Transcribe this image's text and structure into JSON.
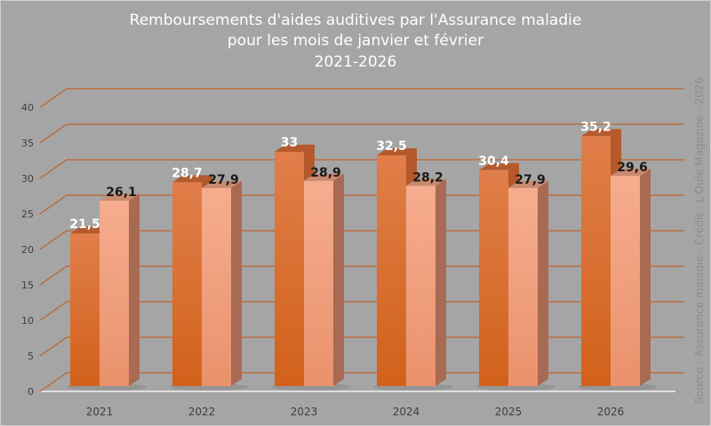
{
  "chart_data": {
    "type": "bar",
    "title": [
      "Remboursements d'aides auditives par l'Assurance maladie",
      "pour les mois de janvier et février",
      "2021-2026"
    ],
    "categories": [
      "2021",
      "2022",
      "2023",
      "2024",
      "2025",
      "2026"
    ],
    "series": [
      {
        "values": [
          21.5,
          28.7,
          33,
          32.5,
          30.4,
          35.2
        ],
        "labels": [
          "21,5",
          "28,7",
          "33",
          "32,5",
          "30,4",
          "35,2"
        ],
        "color": "#dd7434",
        "label_color": "#ffffff"
      },
      {
        "values": [
          26.1,
          27.9,
          28.9,
          28.2,
          27.9,
          29.6
        ],
        "labels": [
          "26,1",
          "27,9",
          "28,9",
          "28,2",
          "27,9",
          "29,6"
        ],
        "color": "#f2a685",
        "label_color": "#1a1a1a"
      }
    ],
    "yticks": [
      "0",
      "5",
      "10",
      "15",
      "20",
      "25",
      "30",
      "35",
      "40"
    ],
    "ylim": [
      0,
      40
    ],
    "grid": true,
    "style": "3d-bars",
    "grid_color": "#c0642c",
    "background": "#a5a5a5"
  },
  "source": "Source : Assurance maladie - Crédit : L'Ouïe Magazine - 2026"
}
